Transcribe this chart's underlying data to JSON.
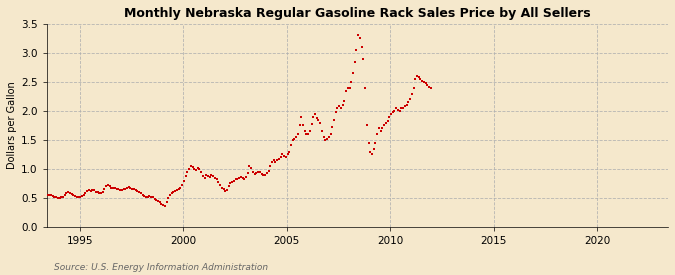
{
  "title": "Monthly Nebraska Regular Gasoline Rack Sales Price by All Sellers",
  "ylabel": "Dollars per Gallon",
  "source": "Source: U.S. Energy Information Administration",
  "background_color": "#f5e8cc",
  "dot_color": "#cc0000",
  "ylim": [
    0.0,
    3.5
  ],
  "yticks": [
    0.0,
    0.5,
    1.0,
    1.5,
    2.0,
    2.5,
    3.0,
    3.5
  ],
  "xlim_start": 1993,
  "xlim_end": 2023,
  "xticks": [
    1995,
    2000,
    2005,
    2010,
    2015,
    2020
  ],
  "data": [
    [
      1993,
      1,
      0.5
    ],
    [
      1993,
      2,
      0.51
    ],
    [
      1993,
      3,
      0.52
    ],
    [
      1993,
      4,
      0.53
    ],
    [
      1993,
      5,
      0.54
    ],
    [
      1993,
      6,
      0.55
    ],
    [
      1993,
      7,
      0.56
    ],
    [
      1993,
      8,
      0.55
    ],
    [
      1993,
      9,
      0.53
    ],
    [
      1993,
      10,
      0.52
    ],
    [
      1993,
      11,
      0.51
    ],
    [
      1993,
      12,
      0.5
    ],
    [
      1994,
      1,
      0.5
    ],
    [
      1994,
      2,
      0.51
    ],
    [
      1994,
      3,
      0.52
    ],
    [
      1994,
      4,
      0.55
    ],
    [
      1994,
      5,
      0.58
    ],
    [
      1994,
      6,
      0.6
    ],
    [
      1994,
      7,
      0.59
    ],
    [
      1994,
      8,
      0.57
    ],
    [
      1994,
      9,
      0.55
    ],
    [
      1994,
      10,
      0.53
    ],
    [
      1994,
      11,
      0.52
    ],
    [
      1994,
      12,
      0.51
    ],
    [
      1995,
      1,
      0.52
    ],
    [
      1995,
      2,
      0.54
    ],
    [
      1995,
      3,
      0.56
    ],
    [
      1995,
      4,
      0.59
    ],
    [
      1995,
      5,
      0.62
    ],
    [
      1995,
      6,
      0.63
    ],
    [
      1995,
      7,
      0.62
    ],
    [
      1995,
      8,
      0.64
    ],
    [
      1995,
      9,
      0.63
    ],
    [
      1995,
      10,
      0.61
    ],
    [
      1995,
      11,
      0.6
    ],
    [
      1995,
      12,
      0.58
    ],
    [
      1996,
      1,
      0.59
    ],
    [
      1996,
      2,
      0.61
    ],
    [
      1996,
      3,
      0.66
    ],
    [
      1996,
      4,
      0.7
    ],
    [
      1996,
      5,
      0.72
    ],
    [
      1996,
      6,
      0.7
    ],
    [
      1996,
      7,
      0.68
    ],
    [
      1996,
      8,
      0.67
    ],
    [
      1996,
      9,
      0.67
    ],
    [
      1996,
      10,
      0.66
    ],
    [
      1996,
      11,
      0.65
    ],
    [
      1996,
      12,
      0.63
    ],
    [
      1997,
      1,
      0.63
    ],
    [
      1997,
      2,
      0.65
    ],
    [
      1997,
      3,
      0.66
    ],
    [
      1997,
      4,
      0.68
    ],
    [
      1997,
      5,
      0.69
    ],
    [
      1997,
      6,
      0.67
    ],
    [
      1997,
      7,
      0.66
    ],
    [
      1997,
      8,
      0.65
    ],
    [
      1997,
      9,
      0.63
    ],
    [
      1997,
      10,
      0.62
    ],
    [
      1997,
      11,
      0.6
    ],
    [
      1997,
      12,
      0.58
    ],
    [
      1998,
      1,
      0.55
    ],
    [
      1998,
      2,
      0.53
    ],
    [
      1998,
      3,
      0.51
    ],
    [
      1998,
      4,
      0.52
    ],
    [
      1998,
      5,
      0.53
    ],
    [
      1998,
      6,
      0.52
    ],
    [
      1998,
      7,
      0.51
    ],
    [
      1998,
      8,
      0.49
    ],
    [
      1998,
      9,
      0.47
    ],
    [
      1998,
      10,
      0.45
    ],
    [
      1998,
      11,
      0.43
    ],
    [
      1998,
      12,
      0.4
    ],
    [
      1999,
      1,
      0.38
    ],
    [
      1999,
      2,
      0.37
    ],
    [
      1999,
      3,
      0.43
    ],
    [
      1999,
      4,
      0.5
    ],
    [
      1999,
      5,
      0.55
    ],
    [
      1999,
      6,
      0.58
    ],
    [
      1999,
      7,
      0.6
    ],
    [
      1999,
      8,
      0.62
    ],
    [
      1999,
      9,
      0.63
    ],
    [
      1999,
      10,
      0.65
    ],
    [
      1999,
      11,
      0.68
    ],
    [
      1999,
      12,
      0.72
    ],
    [
      2000,
      1,
      0.8
    ],
    [
      2000,
      2,
      0.88
    ],
    [
      2000,
      3,
      0.95
    ],
    [
      2000,
      4,
      1.0
    ],
    [
      2000,
      5,
      1.05
    ],
    [
      2000,
      6,
      1.03
    ],
    [
      2000,
      7,
      1.0
    ],
    [
      2000,
      8,
      0.98
    ],
    [
      2000,
      9,
      1.02
    ],
    [
      2000,
      10,
      1.0
    ],
    [
      2000,
      11,
      0.95
    ],
    [
      2000,
      12,
      0.88
    ],
    [
      2001,
      1,
      0.85
    ],
    [
      2001,
      2,
      0.9
    ],
    [
      2001,
      3,
      0.88
    ],
    [
      2001,
      4,
      0.87
    ],
    [
      2001,
      5,
      0.9
    ],
    [
      2001,
      6,
      0.88
    ],
    [
      2001,
      7,
      0.85
    ],
    [
      2001,
      8,
      0.83
    ],
    [
      2001,
      9,
      0.78
    ],
    [
      2001,
      10,
      0.72
    ],
    [
      2001,
      11,
      0.68
    ],
    [
      2001,
      12,
      0.65
    ],
    [
      2002,
      1,
      0.62
    ],
    [
      2002,
      2,
      0.63
    ],
    [
      2002,
      3,
      0.7
    ],
    [
      2002,
      4,
      0.75
    ],
    [
      2002,
      5,
      0.78
    ],
    [
      2002,
      6,
      0.8
    ],
    [
      2002,
      7,
      0.82
    ],
    [
      2002,
      8,
      0.83
    ],
    [
      2002,
      9,
      0.85
    ],
    [
      2002,
      10,
      0.87
    ],
    [
      2002,
      11,
      0.85
    ],
    [
      2002,
      12,
      0.83
    ],
    [
      2003,
      1,
      0.87
    ],
    [
      2003,
      2,
      0.93
    ],
    [
      2003,
      3,
      1.05
    ],
    [
      2003,
      4,
      1.02
    ],
    [
      2003,
      5,
      0.95
    ],
    [
      2003,
      6,
      0.92
    ],
    [
      2003,
      7,
      0.93
    ],
    [
      2003,
      8,
      0.95
    ],
    [
      2003,
      9,
      0.95
    ],
    [
      2003,
      10,
      0.92
    ],
    [
      2003,
      11,
      0.9
    ],
    [
      2003,
      12,
      0.9
    ],
    [
      2004,
      1,
      0.93
    ],
    [
      2004,
      2,
      0.97
    ],
    [
      2004,
      3,
      1.05
    ],
    [
      2004,
      4,
      1.12
    ],
    [
      2004,
      5,
      1.15
    ],
    [
      2004,
      6,
      1.12
    ],
    [
      2004,
      7,
      1.15
    ],
    [
      2004,
      8,
      1.18
    ],
    [
      2004,
      9,
      1.2
    ],
    [
      2004,
      10,
      1.25
    ],
    [
      2004,
      11,
      1.22
    ],
    [
      2004,
      12,
      1.2
    ],
    [
      2005,
      1,
      1.25
    ],
    [
      2005,
      2,
      1.3
    ],
    [
      2005,
      3,
      1.42
    ],
    [
      2005,
      4,
      1.5
    ],
    [
      2005,
      5,
      1.52
    ],
    [
      2005,
      6,
      1.55
    ],
    [
      2005,
      7,
      1.6
    ],
    [
      2005,
      8,
      1.75
    ],
    [
      2005,
      9,
      1.9
    ],
    [
      2005,
      10,
      1.75
    ],
    [
      2005,
      11,
      1.65
    ],
    [
      2005,
      12,
      1.6
    ],
    [
      2006,
      1,
      1.6
    ],
    [
      2006,
      2,
      1.65
    ],
    [
      2006,
      3,
      1.78
    ],
    [
      2006,
      4,
      1.9
    ],
    [
      2006,
      5,
      1.95
    ],
    [
      2006,
      6,
      1.88
    ],
    [
      2006,
      7,
      1.85
    ],
    [
      2006,
      8,
      1.8
    ],
    [
      2006,
      9,
      1.65
    ],
    [
      2006,
      10,
      1.55
    ],
    [
      2006,
      11,
      1.5
    ],
    [
      2006,
      12,
      1.52
    ],
    [
      2007,
      1,
      1.55
    ],
    [
      2007,
      2,
      1.6
    ],
    [
      2007,
      3,
      1.72
    ],
    [
      2007,
      4,
      1.85
    ],
    [
      2007,
      5,
      1.98
    ],
    [
      2007,
      6,
      2.05
    ],
    [
      2007,
      7,
      2.08
    ],
    [
      2007,
      8,
      2.05
    ],
    [
      2007,
      9,
      2.1
    ],
    [
      2007,
      10,
      2.18
    ],
    [
      2007,
      11,
      2.35
    ],
    [
      2007,
      12,
      2.4
    ],
    [
      2008,
      1,
      2.4
    ],
    [
      2008,
      2,
      2.5
    ],
    [
      2008,
      3,
      2.65
    ],
    [
      2008,
      4,
      2.85
    ],
    [
      2008,
      5,
      3.05
    ],
    [
      2008,
      6,
      3.3
    ],
    [
      2008,
      7,
      3.25
    ],
    [
      2008,
      8,
      3.1
    ],
    [
      2008,
      9,
      2.9
    ],
    [
      2008,
      10,
      2.4
    ],
    [
      2008,
      11,
      1.75
    ],
    [
      2008,
      12,
      1.45
    ],
    [
      2009,
      1,
      1.3
    ],
    [
      2009,
      2,
      1.25
    ],
    [
      2009,
      3,
      1.35
    ],
    [
      2009,
      4,
      1.45
    ],
    [
      2009,
      5,
      1.6
    ],
    [
      2009,
      6,
      1.7
    ],
    [
      2009,
      7,
      1.65
    ],
    [
      2009,
      8,
      1.7
    ],
    [
      2009,
      9,
      1.75
    ],
    [
      2009,
      10,
      1.8
    ],
    [
      2009,
      11,
      1.82
    ],
    [
      2009,
      12,
      1.9
    ],
    [
      2010,
      1,
      1.95
    ],
    [
      2010,
      2,
      1.98
    ],
    [
      2010,
      3,
      2.0
    ],
    [
      2010,
      4,
      2.05
    ],
    [
      2010,
      5,
      2.02
    ],
    [
      2010,
      6,
      2.0
    ],
    [
      2010,
      7,
      2.05
    ],
    [
      2010,
      8,
      2.05
    ],
    [
      2010,
      9,
      2.08
    ],
    [
      2010,
      10,
      2.1
    ],
    [
      2010,
      11,
      2.15
    ],
    [
      2010,
      12,
      2.2
    ],
    [
      2011,
      1,
      2.3
    ],
    [
      2011,
      2,
      2.4
    ],
    [
      2011,
      3,
      2.55
    ],
    [
      2011,
      4,
      2.6
    ],
    [
      2011,
      5,
      2.58
    ],
    [
      2011,
      6,
      2.55
    ],
    [
      2011,
      7,
      2.52
    ],
    [
      2011,
      8,
      2.5
    ],
    [
      2011,
      9,
      2.48
    ],
    [
      2011,
      10,
      2.45
    ],
    [
      2011,
      11,
      2.42
    ],
    [
      2011,
      12,
      2.4
    ]
  ]
}
